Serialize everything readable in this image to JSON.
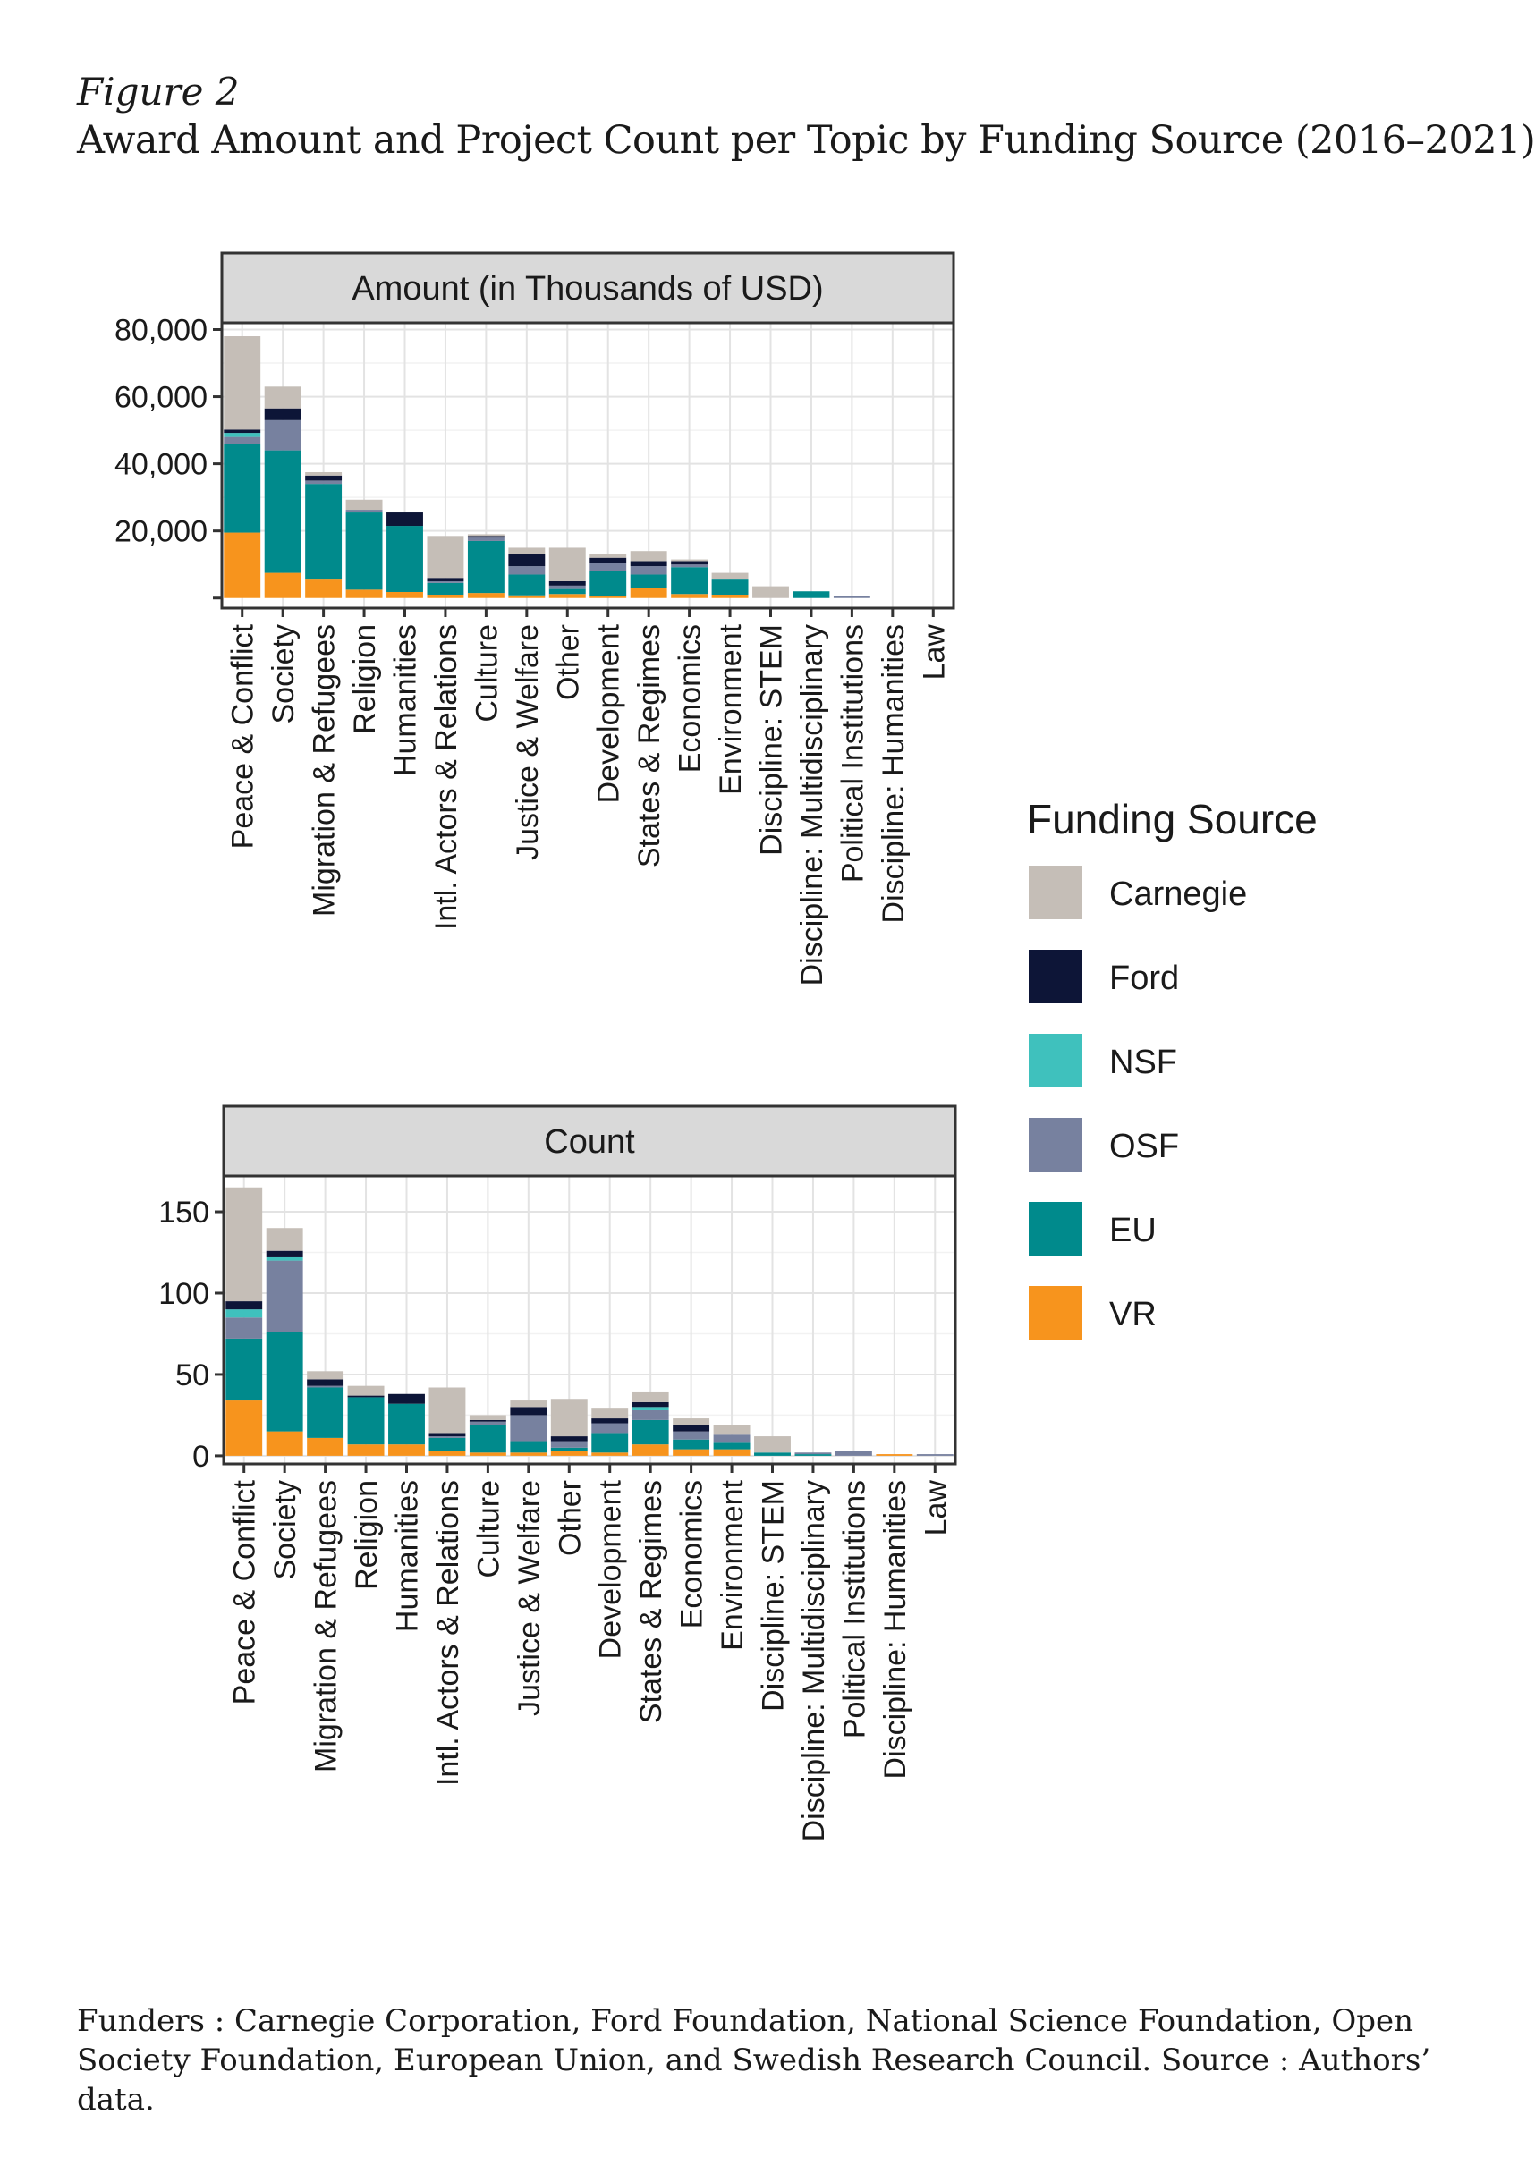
{
  "figure_label": "Figure 2",
  "figure_title": "Award Amount and Project Count per Topic by Funding Source (2016–2021)",
  "footnote": "Funders : Carnegie Corporation, Ford Foundation, National Science Foundation, Open Society Foundation, European Union, and Swedish Research Council. Source : Authors’ data.",
  "colors": {
    "Carnegie": "#c5beb7",
    "Ford": "#0d1537",
    "NSF": "#3fc1bd",
    "OSF": "#77819f",
    "EU": "#008a8c",
    "VR": "#f7941d"
  },
  "chart_data": [
    {
      "type": "bar",
      "stacked": true,
      "title": "Amount (in Thousands of USD)",
      "categories": [
        "Peace & Conflict",
        "Society",
        "Migration & Refugees",
        "Religion",
        "Humanities",
        "Intl. Actors & Relations",
        "Culture",
        "Justice & Welfare",
        "Other",
        "Development",
        "States & Regimes",
        "Economics",
        "Environment",
        "Discipline: STEM",
        "Discipline: Multidisciplinary",
        "Political Institutions",
        "Discipline: Humanities",
        "Law"
      ],
      "series": [
        {
          "name": "VR",
          "values": [
            19500,
            7500,
            5500,
            2500,
            1800,
            1000,
            1500,
            800,
            1200,
            700,
            3000,
            1200,
            1000,
            0,
            0,
            0,
            0,
            0
          ]
        },
        {
          "name": "EU",
          "values": [
            26500,
            36500,
            28500,
            23000,
            19700,
            3500,
            15500,
            6200,
            1500,
            7300,
            4000,
            8000,
            4500,
            0,
            2000,
            0,
            0,
            0
          ]
        },
        {
          "name": "OSF",
          "values": [
            2000,
            9000,
            1000,
            800,
            0,
            500,
            1000,
            2500,
            1000,
            2500,
            2500,
            800,
            0,
            0,
            0,
            500,
            0,
            0
          ]
        },
        {
          "name": "NSF",
          "values": [
            1200,
            0,
            0,
            0,
            0,
            0,
            0,
            0,
            0,
            0,
            0,
            0,
            0,
            0,
            0,
            0,
            0,
            0
          ]
        },
        {
          "name": "Ford",
          "values": [
            1000,
            3500,
            1500,
            0,
            4000,
            1000,
            500,
            3500,
            1300,
            1500,
            1500,
            1000,
            0,
            0,
            0,
            200,
            0,
            0
          ]
        },
        {
          "name": "Carnegie",
          "values": [
            27800,
            6500,
            1000,
            3000,
            0,
            12500,
            500,
            2000,
            10000,
            1000,
            3000,
            500,
            2000,
            3500,
            0,
            0,
            0,
            0
          ]
        }
      ],
      "yticks": [
        20000,
        40000,
        60000,
        80000
      ],
      "ytick_labels": [
        "20,000",
        "40,000",
        "60,000",
        "80,000"
      ],
      "ylim": [
        -3000,
        82000
      ]
    },
    {
      "type": "bar",
      "stacked": true,
      "title": "Count",
      "categories": [
        "Peace & Conflict",
        "Society",
        "Migration & Refugees",
        "Religion",
        "Humanities",
        "Intl. Actors & Relations",
        "Culture",
        "Justice & Welfare",
        "Other",
        "Development",
        "States & Regimes",
        "Economics",
        "Environment",
        "Discipline: STEM",
        "Discipline: Multidisciplinary",
        "Political Institutions",
        "Discipline: Humanities",
        "Law"
      ],
      "series": [
        {
          "name": "VR",
          "values": [
            34,
            15,
            11,
            7,
            7,
            3,
            2,
            2,
            3,
            2,
            7,
            4,
            4,
            0,
            0,
            0,
            1,
            0
          ]
        },
        {
          "name": "EU",
          "values": [
            38,
            61,
            31,
            29,
            25,
            8,
            17,
            7,
            2,
            12,
            15,
            6,
            4,
            2,
            1,
            0,
            0,
            0
          ]
        },
        {
          "name": "OSF",
          "values": [
            13,
            44,
            1,
            0,
            0,
            1,
            2,
            16,
            4,
            6,
            6,
            5,
            5,
            0,
            1,
            3,
            0,
            1
          ]
        },
        {
          "name": "NSF",
          "values": [
            5,
            2,
            0,
            0,
            0,
            0,
            0,
            0,
            0,
            0,
            2,
            0,
            0,
            0,
            0,
            0,
            0,
            0
          ]
        },
        {
          "name": "Ford",
          "values": [
            5,
            4,
            4,
            1,
            6,
            2,
            1,
            5,
            3,
            3,
            3,
            4,
            0,
            0,
            0,
            0,
            0,
            0
          ]
        },
        {
          "name": "Carnegie",
          "values": [
            70,
            14,
            5,
            6,
            0,
            28,
            3,
            4,
            23,
            6,
            6,
            4,
            6,
            10,
            0,
            0,
            0,
            0
          ]
        }
      ],
      "yticks": [
        0,
        50,
        100,
        150
      ],
      "ytick_labels": [
        "0",
        "50",
        "100",
        "150"
      ],
      "ylim": [
        -5,
        172
      ]
    }
  ],
  "legend": {
    "title": "Funding Source",
    "items": [
      "Carnegie",
      "Ford",
      "NSF",
      "OSF",
      "EU",
      "VR"
    ]
  }
}
